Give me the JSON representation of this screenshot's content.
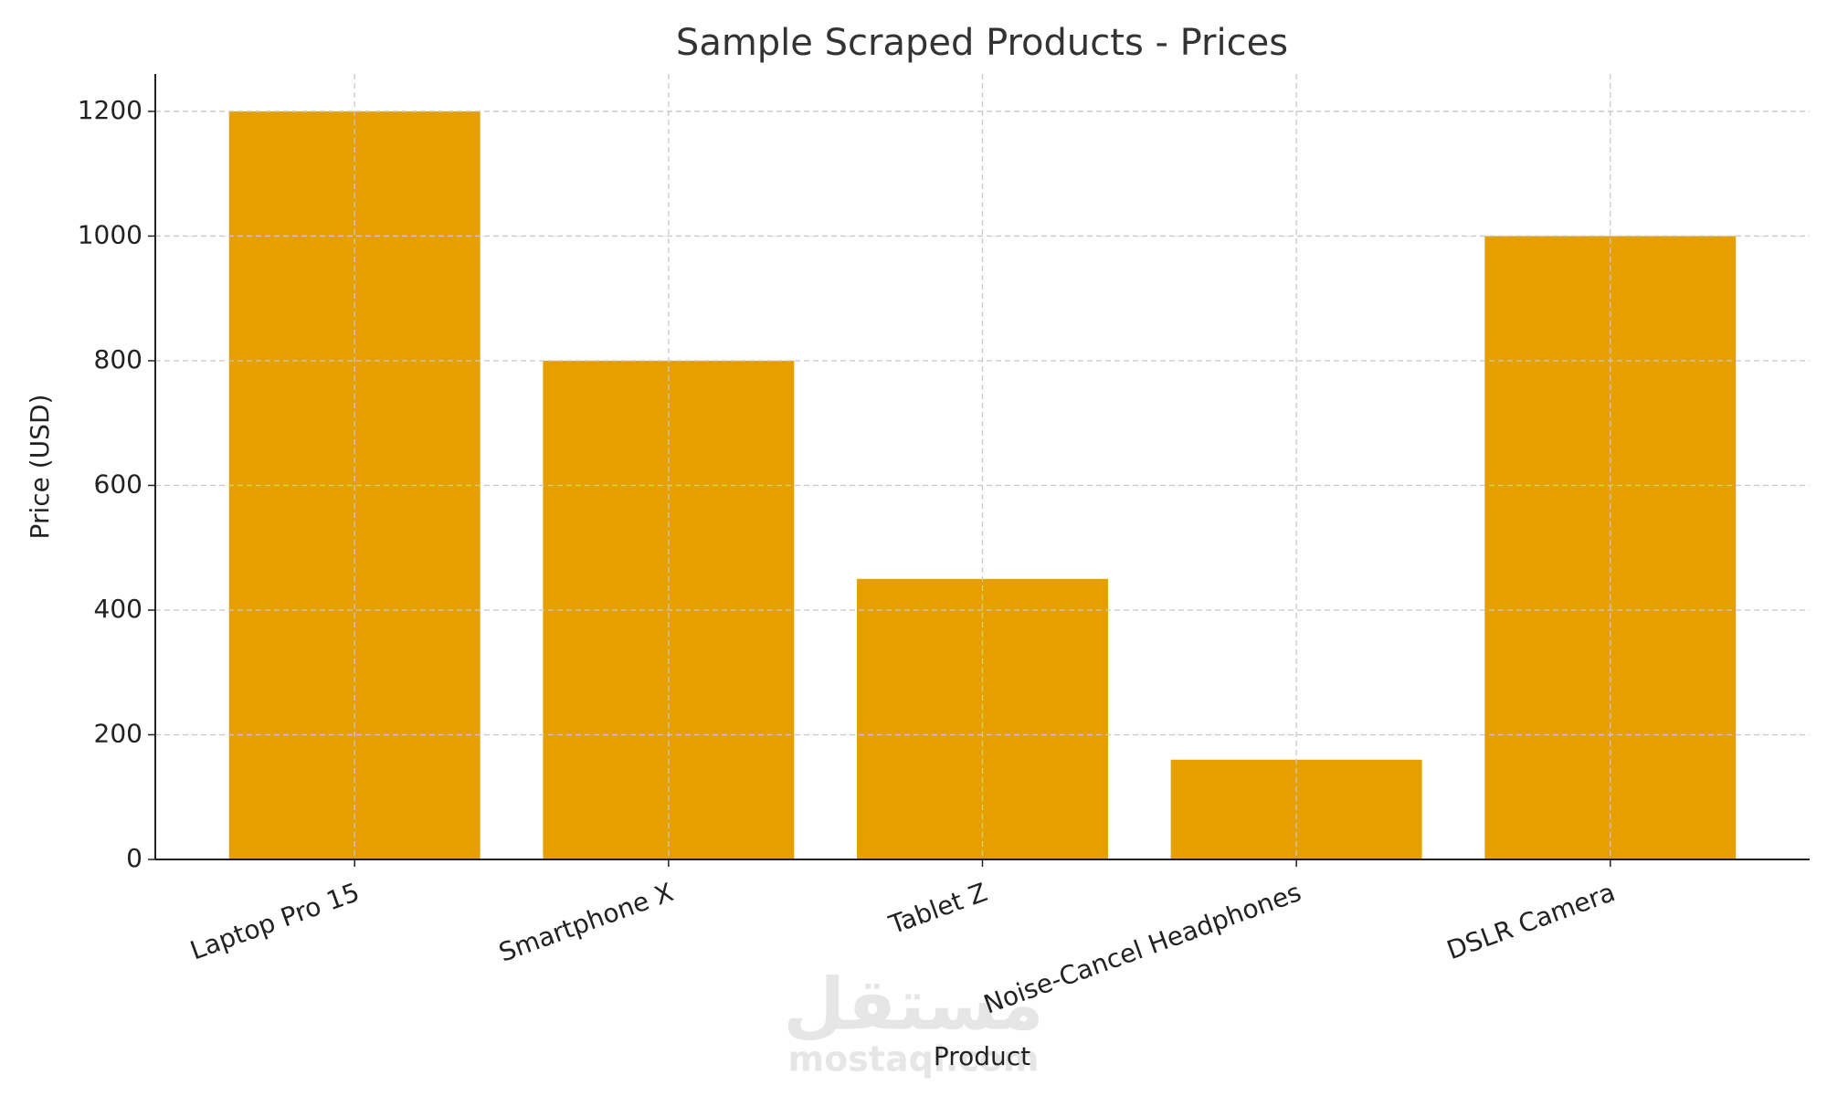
{
  "chart_data": {
    "type": "bar",
    "title": "Sample Scraped Products - Prices",
    "x_label": "Product",
    "y_label": "Price (USD)",
    "categories": [
      "Laptop Pro 15",
      "Smartphone X",
      "Tablet Z",
      "Noise-Cancel Headphones",
      "DSLR Camera"
    ],
    "values": [
      1200,
      800,
      450,
      160,
      1000
    ],
    "color": "#e5a000",
    "ylim": [
      0,
      1260
    ],
    "yticks": [
      0,
      200,
      400,
      600,
      800,
      1000,
      1200
    ],
    "grid": true,
    "watermark": [
      "مستقل",
      "mostaql.com"
    ]
  }
}
